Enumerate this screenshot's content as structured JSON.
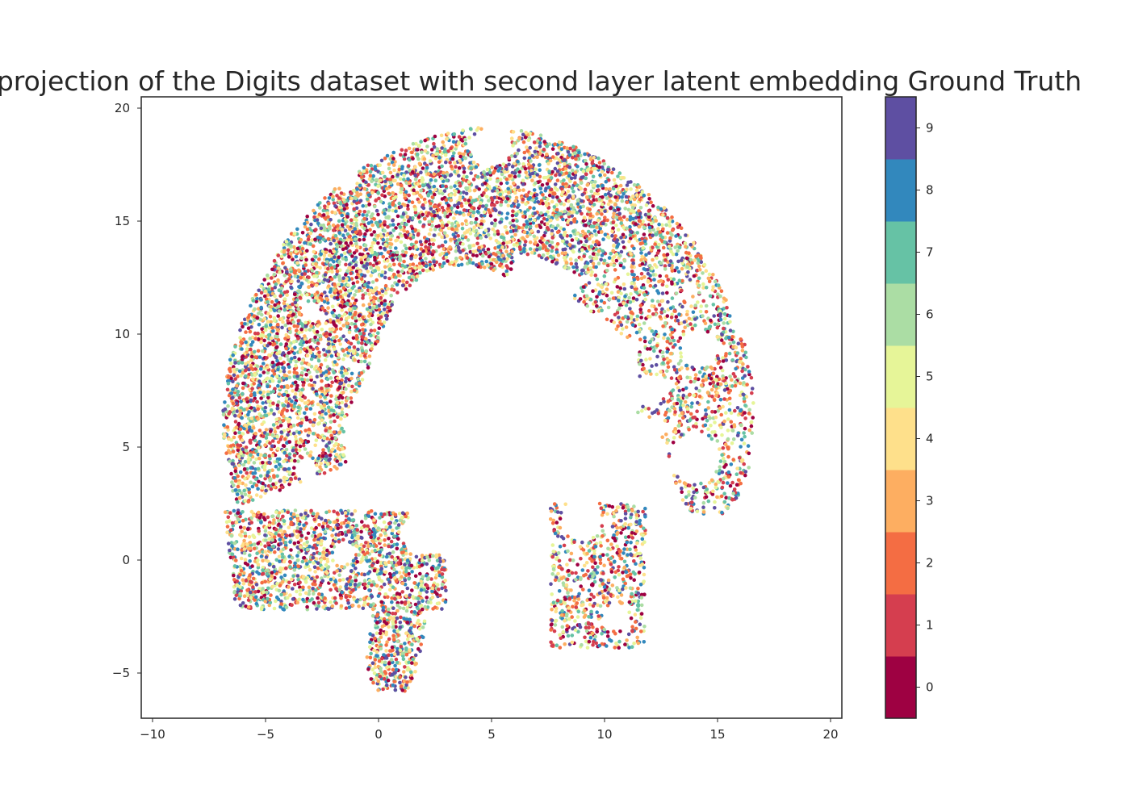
{
  "chart_data": {
    "type": "scatter",
    "title": "projection of the Digits dataset with second layer latent embedding Ground Truth",
    "xlabel": "",
    "ylabel": "",
    "xlim": [
      -10.5,
      20.5
    ],
    "ylim": [
      -7,
      20.5
    ],
    "xticks": [
      -10,
      -5,
      0,
      5,
      10,
      15,
      20
    ],
    "xtick_labels": [
      "−10",
      "−5",
      "0",
      "5",
      "10",
      "15",
      "20"
    ],
    "yticks": [
      -5,
      0,
      5,
      10,
      15,
      20
    ],
    "ytick_labels": [
      "−5",
      "0",
      "5",
      "10",
      "15",
      "20"
    ],
    "grid": false,
    "colorbar": {
      "label": "",
      "ticks": [
        0,
        1,
        2,
        3,
        4,
        5,
        6,
        7,
        8,
        9
      ],
      "tick_labels": [
        "0",
        "1",
        "2",
        "3",
        "4",
        "5",
        "6",
        "7",
        "8",
        "9"
      ],
      "colors": [
        "#9e0142",
        "#d53e4f",
        "#f46d43",
        "#fdae61",
        "#fee08b",
        "#e6f598",
        "#abdda4",
        "#66c2a5",
        "#3288bd",
        "#5e4fa2"
      ],
      "colormap": "Spectral",
      "discrete": true
    },
    "point_cloud_regions": [
      {
        "desc": "left arch",
        "x_range": [
          -6.8,
          6.5
        ],
        "y_range": [
          -2.0,
          19.3
        ],
        "density": "high"
      },
      {
        "desc": "right arch",
        "x_range": [
          7.5,
          16.6
        ],
        "y_range": [
          -3.9,
          14.3
        ],
        "density": "medium"
      },
      {
        "desc": "lower tail",
        "x_range": [
          -0.2,
          3.0
        ],
        "y_range": [
          -5.8,
          0.2
        ],
        "density": "medium"
      }
    ]
  }
}
